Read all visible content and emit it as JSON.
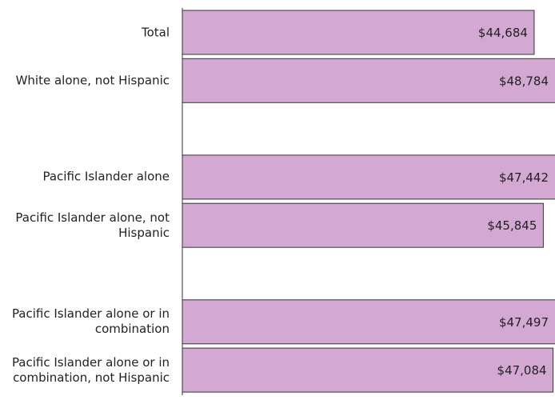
{
  "chart_data": {
    "type": "barh",
    "categories": [
      "Total",
      "White alone, not Hispanic",
      null,
      "Pacific Islander alone",
      "Pacific Islander alone, not Hispanic",
      null,
      "Pacific Islander alone or in combination",
      "Pacific Islander alone or in combination, not Hispanic"
    ],
    "values": [
      44684,
      48784,
      null,
      47442,
      45845,
      null,
      47497,
      47084
    ],
    "value_labels": [
      "$44,684",
      "$48,784",
      null,
      "$47,442",
      "$45,845",
      null,
      "$47,497",
      "$47,084"
    ],
    "color": "#d3a9d3",
    "xlim": [
      0,
      47330
    ]
  }
}
